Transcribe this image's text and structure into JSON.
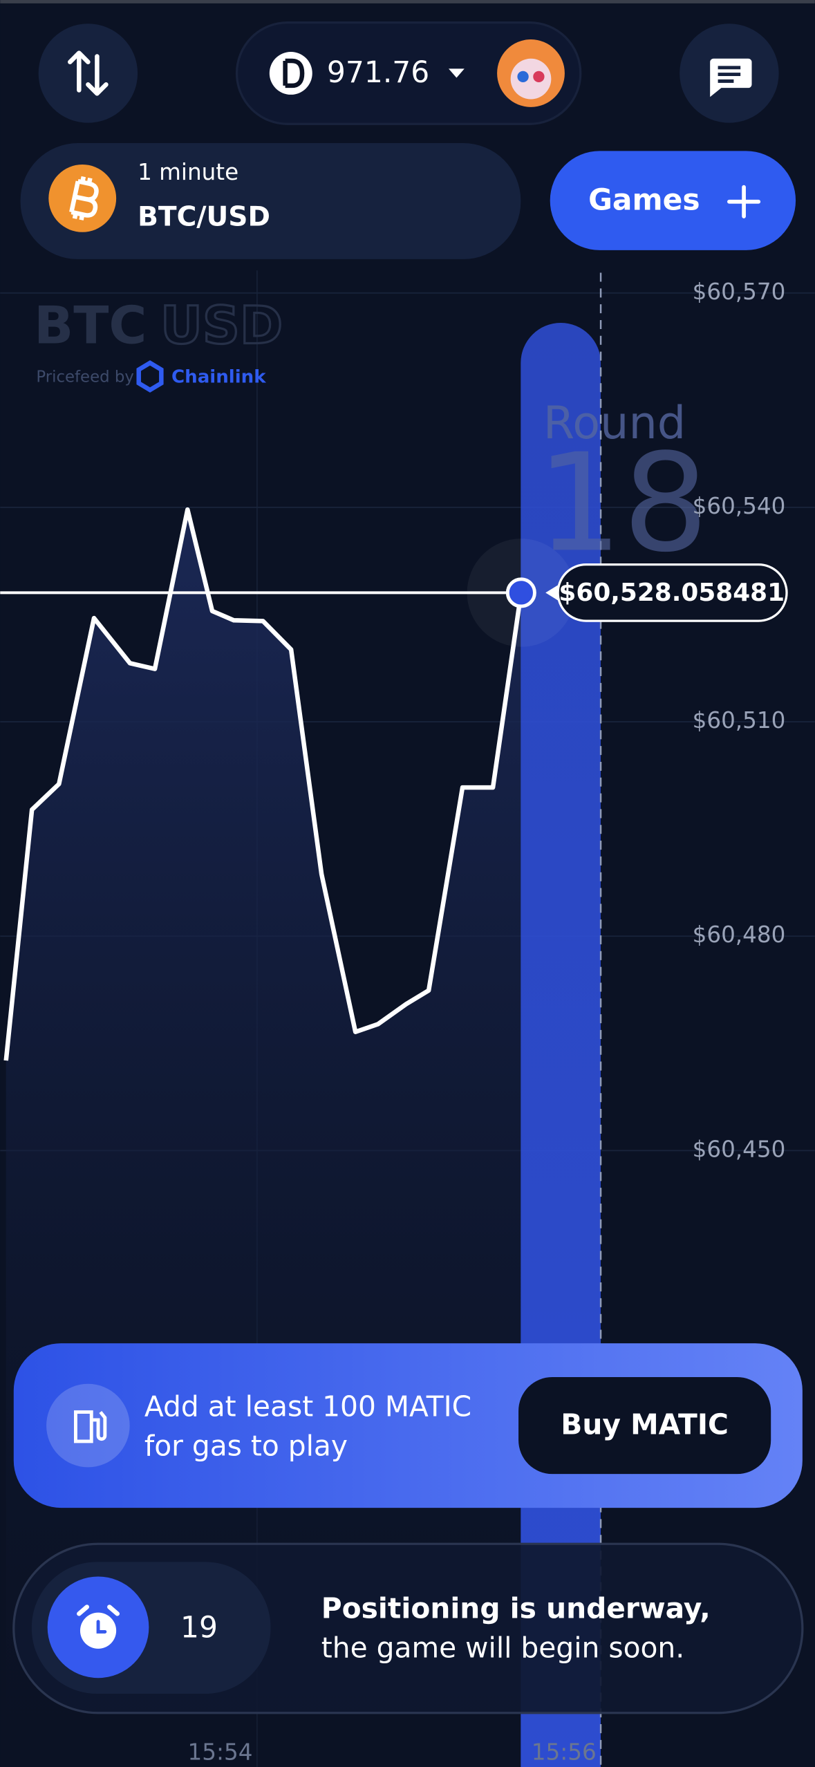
{
  "header": {
    "balance": 971.76
  },
  "pair": {
    "interval": "1 minute",
    "symbol": "BTC/USD"
  },
  "games_button": "Games",
  "chart_data": {
    "type": "line",
    "watermark": [
      "BTC",
      "USD"
    ],
    "pricefeed": "Pricefeed by",
    "provider": "Chainlink",
    "round_label": "Round",
    "round": 18,
    "x": [
      52.754,
      52.905,
      53.062,
      53.266,
      53.475,
      53.62,
      53.81,
      53.954,
      54.079,
      54.249,
      54.413,
      54.59,
      54.787,
      54.918,
      55.082,
      55.213,
      55.41,
      55.587,
      55.751
    ],
    "values": [
      60462.6,
      60497.7,
      60501.3,
      60524.5,
      60518.2,
      60517.4,
      60539.7,
      60525.5,
      60524.2,
      60524.1,
      60520.1,
      60488.7,
      60466.6,
      60467.7,
      60470.5,
      60472.4,
      60500.8,
      60500.8,
      60528.058481
    ],
    "color": "#ffffff",
    "current_price": 60528.058481,
    "current_price_label": "$60,528.058481",
    "xlim": [
      52.72,
      57.46
    ],
    "xticks": [
      {
        "value": 54,
        "label": "15:54"
      },
      {
        "value": 56,
        "label": "15:56"
      }
    ],
    "ylim": [
      60450,
      60570
    ],
    "yticks": [
      {
        "value": 60570,
        "label": "$60,570"
      },
      {
        "value": 60540,
        "label": "$60,540"
      },
      {
        "value": 60510,
        "label": "$60,510"
      },
      {
        "value": 60480,
        "label": "$60,480"
      },
      {
        "value": 60450,
        "label": "$60,450"
      }
    ],
    "grid": true
  },
  "gas_banner": {
    "message": [
      "Add at least 100 MATIC",
      "for gas to play"
    ],
    "button": "Buy MATIC"
  },
  "status": {
    "countdown": 19,
    "message": [
      "Positioning is underway,",
      "the game will begin soon."
    ]
  }
}
